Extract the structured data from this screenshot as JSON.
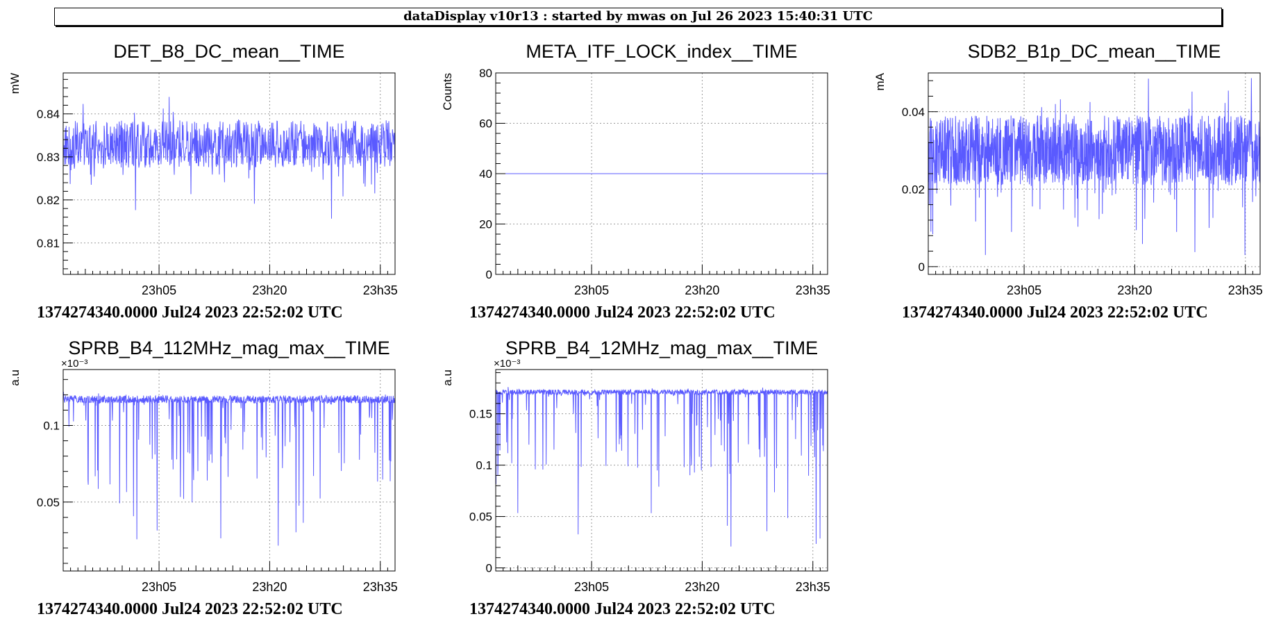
{
  "header": {
    "title": "dataDisplay v10r13 : started by mwas on Jul 26 2023 15:40:31 UTC"
  },
  "colors": {
    "series": "#5a5aff",
    "axis": "#000000",
    "grid": "#9a9a9a"
  },
  "chart_data": [
    {
      "type": "line",
      "title": "DET_B8_DC_mean__TIME",
      "ylabel": "mW",
      "exponent": "",
      "xlabel": "1374274340.0000 Jul24 2023 22:52:02 UTC",
      "x_ticks": [
        "23h05",
        "23h20",
        "23h35"
      ],
      "x_range_min": [
        0,
        45
      ],
      "x_tick_min": [
        13,
        28,
        43
      ],
      "ylim": [
        0.8027,
        0.8495
      ],
      "y_ticks": [
        0.81,
        0.82,
        0.83,
        0.84
      ],
      "y_tick_labels": [
        "0.81",
        "0.82",
        "0.83",
        "0.84"
      ],
      "grid": true,
      "noise": {
        "mean": 0.833,
        "spread": 0.0055,
        "spikes_down": 0.0085,
        "n": 900,
        "spike_rate": 0.04,
        "ymin": 0.806,
        "ymax": 0.845
      }
    },
    {
      "type": "line",
      "title": "META_ITF_LOCK_index__TIME",
      "ylabel": "Counts",
      "exponent": "",
      "xlabel": "1374274340.0000 Jul24 2023 22:52:02 UTC",
      "x_ticks": [
        "23h05",
        "23h20",
        "23h35"
      ],
      "x_range_min": [
        0,
        45
      ],
      "x_tick_min": [
        13,
        28,
        43
      ],
      "ylim": [
        0,
        80
      ],
      "y_ticks": [
        0,
        20,
        40,
        60,
        80
      ],
      "y_tick_labels": [
        "0",
        "20",
        "40",
        "60",
        "80"
      ],
      "grid": true,
      "constant": 40
    },
    {
      "type": "line",
      "title": "SDB2_B1p_DC_mean__TIME",
      "ylabel": "mA",
      "exponent": "",
      "xlabel": "1374274340.0000 Jul24 2023 22:52:02 UTC",
      "x_ticks": [
        "23h05",
        "23h20",
        "23h35"
      ],
      "x_range_min": [
        0,
        45
      ],
      "x_tick_min": [
        13,
        28,
        43
      ],
      "ylim": [
        -0.002,
        0.05
      ],
      "y_ticks": [
        0,
        0.02,
        0.04
      ],
      "y_tick_labels": [
        "0",
        "0.02",
        "0.04"
      ],
      "grid": true,
      "noise": {
        "mean": 0.03,
        "spread": 0.009,
        "spikes_down": 0.015,
        "n": 1400,
        "spike_rate": 0.06,
        "ymin": 0.003,
        "ymax": 0.05
      }
    },
    {
      "type": "line",
      "title": "SPRB_B4_112MHz_mag_max__TIME",
      "ylabel": "a.u",
      "exponent": "×10⁻³",
      "xlabel": "1374274340.0000 Jul24 2023 22:52:02 UTC",
      "x_ticks": [
        "23h05",
        "23h20",
        "23h35"
      ],
      "x_range_min": [
        0,
        45
      ],
      "x_tick_min": [
        13,
        28,
        43
      ],
      "ylim": [
        0.005,
        0.1365
      ],
      "y_ticks": [
        0.05,
        0.1
      ],
      "y_tick_labels": [
        "0.05",
        "0.1"
      ],
      "grid": true,
      "noise": {
        "mean": 0.117,
        "spread": 0.0025,
        "spikes_down": 0.055,
        "n": 1100,
        "spike_rate": 0.09,
        "ymin": 0.013,
        "ymax": 0.122
      }
    },
    {
      "type": "line",
      "title": "SPRB_B4_12MHz_mag_max__TIME",
      "ylabel": "a.u",
      "exponent": "×10⁻³",
      "xlabel": "1374274340.0000 Jul24 2023 22:52:02 UTC",
      "x_ticks": [
        "23h05",
        "23h20",
        "23h35"
      ],
      "x_range_min": [
        0,
        45
      ],
      "x_tick_min": [
        13,
        28,
        43
      ],
      "ylim": [
        -0.003,
        0.193
      ],
      "y_ticks": [
        0,
        0.05,
        0.1,
        0.15
      ],
      "y_tick_labels": [
        "0",
        "0.05",
        "0.1",
        "0.15"
      ],
      "grid": true,
      "noise": {
        "mean": 0.171,
        "spread": 0.0025,
        "spikes_down": 0.085,
        "n": 1100,
        "spike_rate": 0.09,
        "ymin": 0.018,
        "ymax": 0.176
      }
    }
  ]
}
